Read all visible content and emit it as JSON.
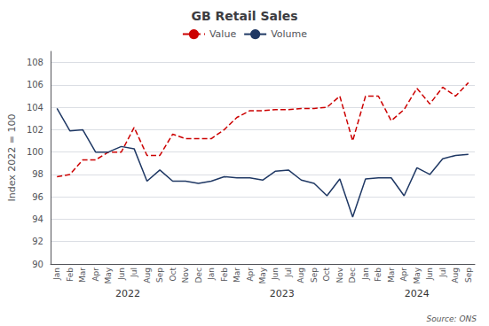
{
  "chart_data": {
    "type": "line",
    "title": "GB Retail Sales",
    "ylabel": "Index 2022 = 100",
    "categories": [
      "Jan",
      "Feb",
      "Mar",
      "Apr",
      "May",
      "Jun",
      "Jul",
      "Aug",
      "Sep",
      "Oct",
      "Nov",
      "Dec",
      "Jan",
      "Feb",
      "Mar",
      "Apr",
      "May",
      "Jun",
      "Jul",
      "Aug",
      "Sep",
      "Oct",
      "Nov",
      "Dec",
      "Jan",
      "Feb",
      "Mar",
      "Apr",
      "May",
      "Jun",
      "Jul",
      "Aug",
      "Sep"
    ],
    "series": [
      {
        "name": "Value",
        "color": "#cc0000",
        "line_style": "dashed",
        "values": [
          97.8,
          98.0,
          99.3,
          99.3,
          100.0,
          100.0,
          102.2,
          99.7,
          99.7,
          101.6,
          101.2,
          101.2,
          101.2,
          102.0,
          103.1,
          103.7,
          103.7,
          103.8,
          103.8,
          103.9,
          103.9,
          104.0,
          105.0,
          101.0,
          105.0,
          105.0,
          102.8,
          103.8,
          105.7,
          104.3,
          105.8,
          105.0,
          106.2
        ]
      },
      {
        "name": "Volume",
        "color": "#1f3864",
        "line_style": "solid",
        "values": [
          103.9,
          101.9,
          102.0,
          100.0,
          100.0,
          100.5,
          100.3,
          97.4,
          98.4,
          97.4,
          97.4,
          97.2,
          97.4,
          97.8,
          97.7,
          97.7,
          97.5,
          98.3,
          98.4,
          97.5,
          97.2,
          96.1,
          97.6,
          94.2,
          97.6,
          97.7,
          97.7,
          96.1,
          98.6,
          98.0,
          99.4,
          99.7,
          99.8
        ]
      }
    ],
    "ylim": [
      90,
      109
    ],
    "yticks": [
      90,
      92,
      94,
      96,
      98,
      100,
      102,
      104,
      106,
      108
    ],
    "grid": true,
    "legend": "top",
    "annotations": [
      {
        "text": "2022",
        "x": 5.5
      },
      {
        "text": "2023",
        "x": 17.5
      },
      {
        "text": "2024",
        "x": 28.0
      },
      {
        "text": "Source: ONS"
      }
    ]
  }
}
